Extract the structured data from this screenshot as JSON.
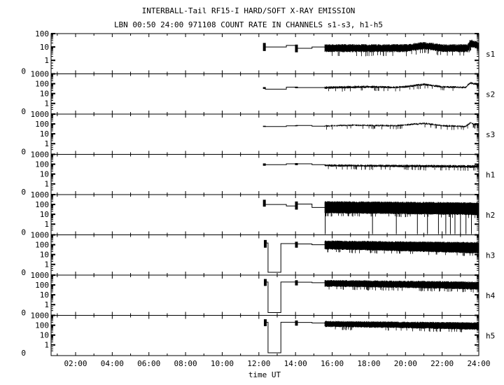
{
  "chart_data": {
    "type": "line",
    "title": "INTERBALL-Tail RF15-I HARD/SOFT X-RAY EMISSION",
    "subtitle": "LBN 00:50 24:00 971108  COUNT RATE IN CHANNELS s1-s3, h1-h5",
    "xlabel": "time UT",
    "xlim_hours": [
      0.83,
      24
    ],
    "x_ticks": [
      "02:00",
      "04:00",
      "06:00",
      "08:00",
      "10:00",
      "12:00",
      "14:00",
      "16:00",
      "18:00",
      "20:00",
      "22:00",
      "24:00"
    ],
    "y_scale": "log (with 0 at bottom)",
    "grid": false,
    "color": "#000000",
    "panels": [
      {
        "name": "s1",
        "ymax": 100,
        "y_ticks": [
          "100",
          "10",
          "1",
          "0"
        ],
        "steps": [
          [
            12.33,
            13.5,
            10
          ],
          [
            13.5,
            14.05,
            13
          ],
          [
            14.05,
            14.9,
            8
          ],
          [
            14.9,
            15.6,
            10
          ]
        ],
        "bursts": [
          [
            12.3,
            5,
            20
          ],
          [
            14.05,
            4,
            15
          ]
        ],
        "band": [
          [
            15.6,
            5,
            15
          ],
          [
            20,
            5,
            15
          ],
          [
            21,
            8,
            22
          ],
          [
            22,
            5,
            15
          ],
          [
            23.4,
            5,
            15
          ],
          [
            23.55,
            12,
            35
          ],
          [
            24,
            8,
            20
          ]
        ],
        "drops": []
      },
      {
        "name": "s2",
        "ymax": 1000,
        "y_ticks": [
          "1000",
          "100",
          "10",
          "1",
          "0"
        ],
        "steps": [
          [
            12.33,
            13.5,
            28
          ],
          [
            13.5,
            14.05,
            45
          ],
          [
            14.05,
            15.6,
            40
          ]
        ],
        "bursts": [
          [
            12.3,
            30,
            45
          ],
          [
            14.05,
            35,
            50
          ]
        ],
        "band": [
          [
            15.6,
            35,
            50
          ],
          [
            18,
            45,
            60
          ],
          [
            19.5,
            40,
            50
          ],
          [
            20.2,
            50,
            65
          ],
          [
            21,
            80,
            100
          ],
          [
            22,
            45,
            55
          ],
          [
            23.3,
            40,
            50
          ],
          [
            23.55,
            110,
            140
          ],
          [
            24,
            70,
            90
          ]
        ],
        "drops": []
      },
      {
        "name": "s3",
        "ymax": 1000,
        "y_ticks": [
          "1000",
          "100",
          "10",
          "1",
          "0"
        ],
        "steps": [
          [
            12.33,
            13.5,
            55
          ],
          [
            13.5,
            14.05,
            65
          ],
          [
            14.05,
            14.9,
            70
          ],
          [
            14.9,
            15.6,
            60
          ]
        ],
        "bursts": [
          [
            12.3,
            50,
            65
          ],
          [
            14.05,
            60,
            75
          ]
        ],
        "band": [
          [
            15.6,
            60,
            70
          ],
          [
            17,
            75,
            85
          ],
          [
            19.5,
            65,
            75
          ],
          [
            20,
            80,
            90
          ],
          [
            21,
            110,
            130
          ],
          [
            22,
            65,
            75
          ],
          [
            23.3,
            55,
            65
          ],
          [
            23.55,
            130,
            150
          ],
          [
            23.8,
            80,
            90
          ],
          [
            24,
            110,
            120
          ]
        ],
        "drops": []
      },
      {
        "name": "h1",
        "ymax": 1000,
        "y_ticks": [
          "1000",
          "100",
          "10",
          "1",
          "0"
        ],
        "steps": [
          [
            12.33,
            13.5,
            90
          ],
          [
            13.5,
            14.05,
            110
          ],
          [
            14.05,
            14.9,
            110
          ],
          [
            14.9,
            15.6,
            90
          ]
        ],
        "bursts": [
          [
            12.3,
            70,
            120
          ],
          [
            14.05,
            80,
            130
          ]
        ],
        "band": [
          [
            15.6,
            70,
            90
          ],
          [
            24,
            50,
            75
          ]
        ],
        "drops": []
      },
      {
        "name": "h2",
        "ymax": 1000,
        "y_ticks": [
          "1000",
          "100",
          "10",
          "1",
          "0"
        ],
        "steps": [
          [
            12.33,
            13.5,
            100
          ],
          [
            13.5,
            14.05,
            70
          ],
          [
            14.05,
            14.9,
            110
          ],
          [
            14.9,
            15.6,
            50
          ]
        ],
        "bursts": [
          [
            12.3,
            60,
            300
          ],
          [
            14.05,
            30,
            200
          ]
        ],
        "band": [
          [
            15.6,
            15,
            200
          ],
          [
            24,
            10,
            150
          ]
        ],
        "drops": [
          15.62,
          18.2,
          19.5,
          20.65,
          21.2,
          21.8,
          22.2,
          22.45,
          22.7,
          23.0,
          23.3,
          23.6
        ]
      },
      {
        "name": "h3",
        "ymax": 1000,
        "y_ticks": [
          "1000",
          "100",
          "10",
          "1",
          "0"
        ],
        "steps": [
          [
            12.3,
            12.5,
            150
          ],
          [
            12.5,
            13.2,
            0
          ],
          [
            13.2,
            14.05,
            130
          ],
          [
            14.05,
            14.9,
            120
          ],
          [
            14.9,
            15.6,
            100
          ]
        ],
        "bursts": [
          [
            12.35,
            50,
            300
          ],
          [
            14.05,
            50,
            200
          ]
        ],
        "band": [
          [
            15.6,
            40,
            250
          ],
          [
            20,
            25,
            200
          ],
          [
            24,
            15,
            170
          ]
        ],
        "drops": []
      },
      {
        "name": "h4",
        "ymax": 1000,
        "y_ticks": [
          "1000",
          "100",
          "10",
          "1",
          "0"
        ],
        "steps": [
          [
            12.3,
            12.5,
            200
          ],
          [
            12.5,
            13.2,
            0
          ],
          [
            13.2,
            14.05,
            200
          ],
          [
            14.05,
            14.9,
            190
          ],
          [
            14.9,
            15.6,
            170
          ]
        ],
        "bursts": [
          [
            12.35,
            80,
            400
          ],
          [
            14.05,
            90,
            300
          ]
        ],
        "band": [
          [
            15.6,
            80,
            300
          ],
          [
            24,
            40,
            200
          ]
        ],
        "drops": []
      },
      {
        "name": "h5",
        "ymax": 1000,
        "y_ticks": [
          "1000",
          "100",
          "10",
          "1",
          "0"
        ],
        "steps": [
          [
            12.3,
            12.5,
            200
          ],
          [
            12.5,
            13.2,
            0
          ],
          [
            13.2,
            14.05,
            200
          ],
          [
            14.05,
            14.9,
            190
          ],
          [
            14.9,
            15.6,
            170
          ]
        ],
        "bursts": [
          [
            12.35,
            80,
            400
          ],
          [
            14.05,
            90,
            300
          ]
        ],
        "band": [
          [
            15.6,
            80,
            250
          ],
          [
            24,
            40,
            180
          ]
        ],
        "drops": []
      }
    ]
  }
}
